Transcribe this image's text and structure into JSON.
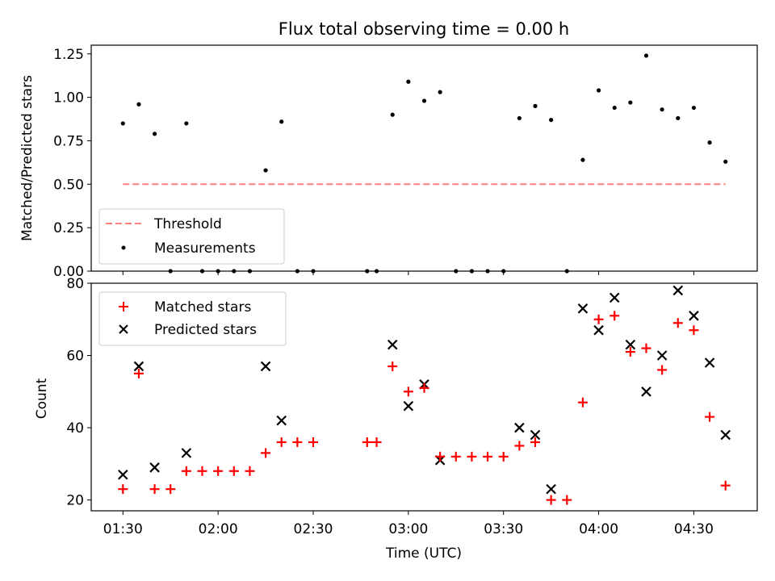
{
  "chart_data": [
    {
      "type": "scatter",
      "title": "Flux total observing time = 0.00 h",
      "ylabel": "Matched/Predicted stars",
      "xlabel": "",
      "ylim": [
        0,
        1.3
      ],
      "xlim": [
        "01:20",
        "04:50"
      ],
      "y_ticks": [
        "0.00",
        "0.25",
        "0.50",
        "0.75",
        "1.00",
        "1.25"
      ],
      "legend_position": "lower-left",
      "threshold": {
        "name": "Threshold",
        "value": 0.5,
        "x_start": "01:30",
        "x_end": "04:40",
        "color": "#ff7f7f"
      },
      "series": [
        {
          "name": "Measurements",
          "color": "#000000",
          "points": [
            [
              "01:30",
              0.85
            ],
            [
              "01:35",
              0.96
            ],
            [
              "01:40",
              0.79
            ],
            [
              "01:45",
              0.0
            ],
            [
              "01:50",
              0.85
            ],
            [
              "01:55",
              0.0
            ],
            [
              "02:00",
              0.0
            ],
            [
              "02:05",
              0.0
            ],
            [
              "02:10",
              0.0
            ],
            [
              "02:15",
              0.58
            ],
            [
              "02:20",
              0.86
            ],
            [
              "02:25",
              0.0
            ],
            [
              "02:30",
              0.0
            ],
            [
              "02:47",
              0.0
            ],
            [
              "02:50",
              0.0
            ],
            [
              "02:55",
              0.9
            ],
            [
              "03:00",
              1.09
            ],
            [
              "03:05",
              0.98
            ],
            [
              "03:10",
              1.03
            ],
            [
              "03:15",
              0.0
            ],
            [
              "03:20",
              0.0
            ],
            [
              "03:25",
              0.0
            ],
            [
              "03:30",
              0.0
            ],
            [
              "03:35",
              0.88
            ],
            [
              "03:40",
              0.95
            ],
            [
              "03:45",
              0.87
            ],
            [
              "03:50",
              0.0
            ],
            [
              "03:55",
              0.64
            ],
            [
              "04:00",
              1.04
            ],
            [
              "04:05",
              0.94
            ],
            [
              "04:10",
              0.97
            ],
            [
              "04:15",
              1.24
            ],
            [
              "04:20",
              0.93
            ],
            [
              "04:25",
              0.88
            ],
            [
              "04:30",
              0.94
            ],
            [
              "04:35",
              0.74
            ],
            [
              "04:40",
              0.63
            ]
          ]
        }
      ]
    },
    {
      "type": "scatter",
      "title": "",
      "ylabel": "Count",
      "xlabel": "Time (UTC)",
      "ylim": [
        17,
        80
      ],
      "xlim": [
        "01:20",
        "04:50"
      ],
      "y_ticks": [
        "20",
        "40",
        "60",
        "80"
      ],
      "x_ticks": [
        "01:30",
        "02:00",
        "02:30",
        "03:00",
        "03:30",
        "04:00",
        "04:30"
      ],
      "legend_position": "upper-left",
      "series": [
        {
          "name": "Matched stars",
          "marker": "plus",
          "color": "#ff0000",
          "points": [
            [
              "01:30",
              23
            ],
            [
              "01:35",
              55
            ],
            [
              "01:40",
              23
            ],
            [
              "01:45",
              23
            ],
            [
              "01:50",
              28
            ],
            [
              "01:55",
              28
            ],
            [
              "02:00",
              28
            ],
            [
              "02:05",
              28
            ],
            [
              "02:10",
              28
            ],
            [
              "02:15",
              33
            ],
            [
              "02:20",
              36
            ],
            [
              "02:25",
              36
            ],
            [
              "02:30",
              36
            ],
            [
              "02:47",
              36
            ],
            [
              "02:50",
              36
            ],
            [
              "02:55",
              57
            ],
            [
              "03:00",
              50
            ],
            [
              "03:05",
              51
            ],
            [
              "03:10",
              32
            ],
            [
              "03:15",
              32
            ],
            [
              "03:20",
              32
            ],
            [
              "03:25",
              32
            ],
            [
              "03:30",
              32
            ],
            [
              "03:35",
              35
            ],
            [
              "03:40",
              36
            ],
            [
              "03:45",
              20
            ],
            [
              "03:50",
              20
            ],
            [
              "03:55",
              47
            ],
            [
              "04:00",
              70
            ],
            [
              "04:05",
              71
            ],
            [
              "04:10",
              61
            ],
            [
              "04:15",
              62
            ],
            [
              "04:20",
              56
            ],
            [
              "04:25",
              69
            ],
            [
              "04:30",
              67
            ],
            [
              "04:35",
              43
            ],
            [
              "04:40",
              24
            ]
          ]
        },
        {
          "name": "Predicted stars",
          "marker": "x",
          "color": "#000000",
          "points": [
            [
              "01:30",
              27
            ],
            [
              "01:35",
              57
            ],
            [
              "01:40",
              29
            ],
            [
              "01:50",
              33
            ],
            [
              "02:15",
              57
            ],
            [
              "02:20",
              42
            ],
            [
              "02:55",
              63
            ],
            [
              "03:00",
              46
            ],
            [
              "03:05",
              52
            ],
            [
              "03:10",
              31
            ],
            [
              "03:35",
              40
            ],
            [
              "03:40",
              38
            ],
            [
              "03:45",
              23
            ],
            [
              "03:55",
              73
            ],
            [
              "04:00",
              67
            ],
            [
              "04:05",
              76
            ],
            [
              "04:10",
              63
            ],
            [
              "04:15",
              50
            ],
            [
              "04:20",
              60
            ],
            [
              "04:25",
              78
            ],
            [
              "04:30",
              71
            ],
            [
              "04:35",
              58
            ],
            [
              "04:40",
              38
            ]
          ]
        }
      ]
    }
  ]
}
